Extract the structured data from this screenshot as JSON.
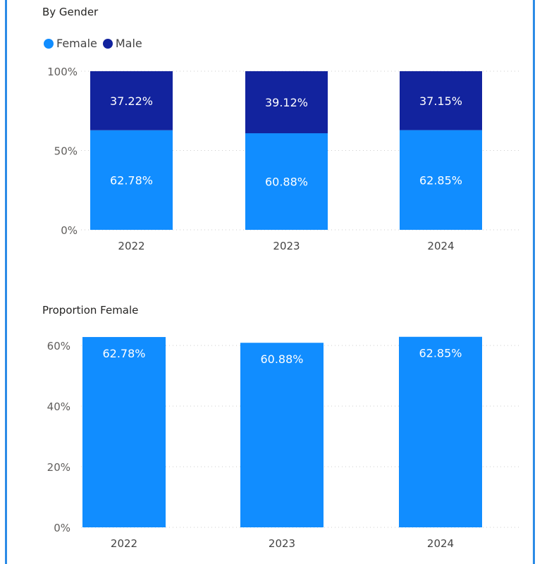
{
  "colors": {
    "female": "#118DFF",
    "male": "#12239E",
    "border": "#2b8be6"
  },
  "chart_data": [
    {
      "type": "bar",
      "stacked": true,
      "percent": true,
      "title": "By Gender",
      "legend": {
        "position": "top-left",
        "items": [
          {
            "name": "Female",
            "color": "#118DFF"
          },
          {
            "name": "Male",
            "color": "#12239E"
          }
        ]
      },
      "categories": [
        "2022",
        "2023",
        "2024"
      ],
      "series": [
        {
          "name": "Female",
          "values": [
            62.78,
            60.88,
            62.85
          ],
          "labels": [
            "62.78%",
            "60.88%",
            "62.85%"
          ]
        },
        {
          "name": "Male",
          "values": [
            37.22,
            39.12,
            37.15
          ],
          "labels": [
            "37.22%",
            "39.12%",
            "37.15%"
          ]
        }
      ],
      "ylim": [
        0,
        100
      ],
      "yticks": [
        "0%",
        "50%",
        "100%"
      ],
      "grid": true
    },
    {
      "type": "bar",
      "title": "Proportion Female",
      "categories": [
        "2022",
        "2023",
        "2024"
      ],
      "values": [
        62.78,
        60.88,
        62.85
      ],
      "labels": [
        "62.78%",
        "60.88%",
        "62.85%"
      ],
      "ylim": [
        0,
        60
      ],
      "yticks": [
        "0%",
        "20%",
        "40%",
        "60%"
      ],
      "grid": true
    }
  ]
}
